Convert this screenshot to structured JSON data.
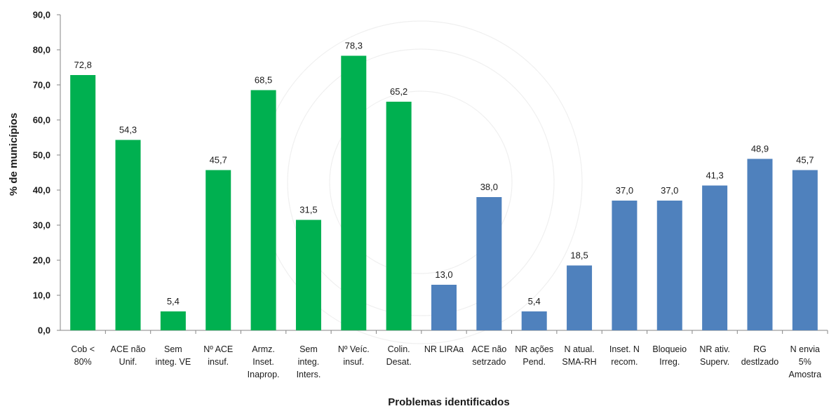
{
  "chart_data": {
    "type": "bar",
    "title": "",
    "xlabel": "Problemas identificados",
    "ylabel": "% de municípios",
    "ylim": [
      0,
      90
    ],
    "yticks": [
      "0,0",
      "10,0",
      "20,0",
      "30,0",
      "40,0",
      "50,0",
      "60,0",
      "70,0",
      "80,0",
      "90,0"
    ],
    "grid": false,
    "legend": "none",
    "colors": {
      "green": "#00b050",
      "blue": "#4f81bd"
    },
    "categories": [
      [
        "Cob <",
        "80%"
      ],
      [
        "ACE não",
        "Unif."
      ],
      [
        "Sem",
        "integ. VE"
      ],
      [
        "Nº ACE",
        "insuf."
      ],
      [
        "Armz.",
        "Inset.",
        "Inaprop."
      ],
      [
        "Sem",
        "integ.",
        "Inters."
      ],
      [
        "Nº Veíc.",
        "insuf."
      ],
      [
        "Colin.",
        "Desat."
      ],
      [
        "NR LIRAa"
      ],
      [
        "ACE não",
        "setrzado"
      ],
      [
        "NR ações",
        "Pend."
      ],
      [
        "N atual.",
        "SMA-RH"
      ],
      [
        "Inset. N",
        "recom."
      ],
      [
        "Bloqueio",
        "Irreg."
      ],
      [
        "NR ativ.",
        "Superv."
      ],
      [
        "RG",
        "destlzado"
      ],
      [
        "N envia",
        "5%",
        "Amostra"
      ]
    ],
    "values": [
      72.8,
      54.3,
      5.4,
      45.7,
      68.5,
      31.5,
      78.3,
      65.2,
      13.0,
      38.0,
      5.4,
      18.5,
      37.0,
      37.0,
      41.3,
      48.9,
      45.7
    ],
    "value_labels": [
      "72,8",
      "54,3",
      "5,4",
      "45,7",
      "68,5",
      "31,5",
      "78,3",
      "65,2",
      "13,0",
      "38,0",
      "5,4",
      "18,5",
      "37,0",
      "37,0",
      "41,3",
      "48,9",
      "45,7"
    ],
    "bar_colors": [
      "green",
      "green",
      "green",
      "green",
      "green",
      "green",
      "green",
      "green",
      "blue",
      "blue",
      "blue",
      "blue",
      "blue",
      "blue",
      "blue",
      "blue",
      "blue"
    ]
  }
}
